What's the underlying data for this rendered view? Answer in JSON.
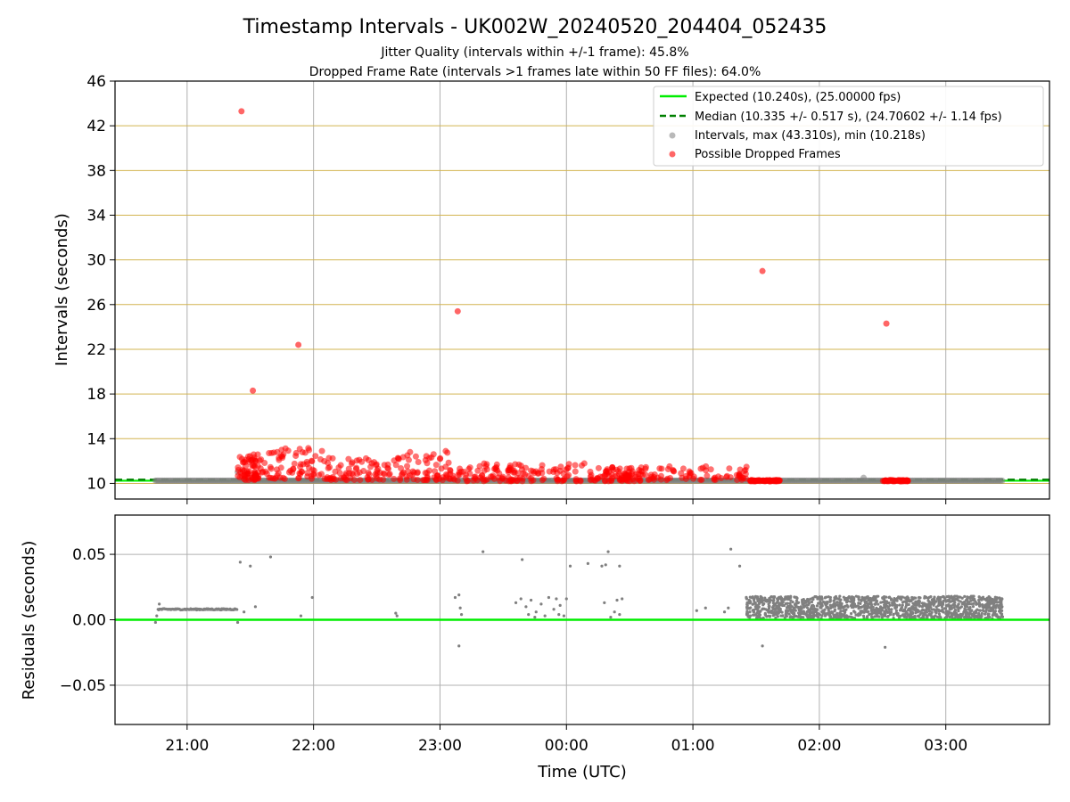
{
  "chart_data": {
    "type": "scatter",
    "title": "Timestamp Intervals - UK002W_20240520_204404_052435",
    "subtitle_lines": [
      "Jitter Quality (intervals within +/-1 frame): 45.8%",
      "Dropped Frame Rate (intervals >1 frames late within 50 FF files): 64.0%"
    ],
    "xlabel": "Time (UTC)",
    "x_ticks": [
      "21:00",
      "22:00",
      "23:00",
      "00:00",
      "01:00",
      "02:00",
      "03:00"
    ],
    "colors": {
      "expected": "#00ee00",
      "median": "#008000",
      "intervals": "#808080",
      "dropped": "#ff0000",
      "hgrid_top": "#d2b450",
      "grid": "#b0b0b0"
    },
    "panels": [
      {
        "ylabel": "Intervals (seconds)",
        "ylim": [
          8.6,
          46
        ],
        "y_ticks": [
          "10",
          "14",
          "18",
          "22",
          "26",
          "30",
          "34",
          "38",
          "42",
          "46"
        ],
        "legend": {
          "placement": "top-right",
          "entries": [
            "Expected (10.240s), (25.00000 fps)",
            "Median (10.335 +/- 0.517 s), (24.70602 +/- 1.14 fps)",
            "Intervals, max (43.310s), min (10.218s)",
            "Possible Dropped Frames"
          ]
        },
        "expected_value": 10.24,
        "median_value": 10.335,
        "interval_band": {
          "x_range": [
            20.75,
            27.45
          ],
          "value": 10.24
        },
        "dropped_outliers": [
          {
            "x": 21.43,
            "y": 43.3
          },
          {
            "x": 21.52,
            "y": 18.3
          },
          {
            "x": 21.88,
            "y": 22.4
          },
          {
            "x": 23.14,
            "y": 25.4
          },
          {
            "x": 25.55,
            "y": 29.0
          },
          {
            "x": 26.53,
            "y": 24.3
          }
        ],
        "dropped_cluster": {
          "segments": [
            {
              "x": [
                21.4,
                21.6
              ],
              "y": [
                10.3,
                12.6
              ]
            },
            {
              "x": [
                21.6,
                22.1
              ],
              "y": [
                10.4,
                13.2
              ]
            },
            {
              "x": [
                22.1,
                22.6
              ],
              "y": [
                10.3,
                12.3
              ]
            },
            {
              "x": [
                22.6,
                23.1
              ],
              "y": [
                10.3,
                12.9
              ]
            },
            {
              "x": [
                23.1,
                23.6
              ],
              "y": [
                10.2,
                11.8
              ]
            },
            {
              "x": [
                23.6,
                24.3
              ],
              "y": [
                10.2,
                11.9
              ]
            },
            {
              "x": [
                24.3,
                24.6
              ],
              "y": [
                10.2,
                11.5
              ]
            },
            {
              "x": [
                24.6,
                25.45
              ],
              "y": [
                10.3,
                11.6
              ]
            },
            {
              "x": [
                25.45,
                25.7
              ],
              "y": [
                10.2,
                10.3
              ]
            },
            {
              "x": [
                26.5,
                26.7
              ],
              "y": [
                10.2,
                10.3
              ]
            }
          ],
          "count": 720
        },
        "gray_outliers": [
          {
            "x": 21.4,
            "y": 11.0
          },
          {
            "x": 26.35,
            "y": 10.5
          }
        ]
      },
      {
        "ylabel": "Residuals (seconds)",
        "ylim": [
          -0.08,
          0.08
        ],
        "y_ticks": [
          "0.05",
          "0.00",
          "−0.05"
        ],
        "zero_line": 0.0,
        "residual_band": {
          "x_range": [
            20.77,
            21.4
          ],
          "y": 0.008
        },
        "residual_scatter_zone": {
          "x_range": [
            25.42,
            27.45
          ],
          "y_range": [
            0.001,
            0.018
          ]
        },
        "residual_points": [
          {
            "x": 20.75,
            "y": -0.002
          },
          {
            "x": 20.76,
            "y": 0.003
          },
          {
            "x": 20.78,
            "y": 0.012
          },
          {
            "x": 21.42,
            "y": 0.044
          },
          {
            "x": 21.5,
            "y": 0.041
          },
          {
            "x": 21.54,
            "y": 0.01
          },
          {
            "x": 21.66,
            "y": 0.048
          },
          {
            "x": 21.4,
            "y": -0.002
          },
          {
            "x": 21.45,
            "y": 0.006
          },
          {
            "x": 21.9,
            "y": 0.003
          },
          {
            "x": 21.99,
            "y": 0.017
          },
          {
            "x": 22.65,
            "y": 0.005
          },
          {
            "x": 22.66,
            "y": 0.003
          },
          {
            "x": 23.12,
            "y": 0.017
          },
          {
            "x": 23.15,
            "y": 0.019
          },
          {
            "x": 23.15,
            "y": -0.02
          },
          {
            "x": 23.16,
            "y": 0.009
          },
          {
            "x": 23.17,
            "y": 0.004
          },
          {
            "x": 23.34,
            "y": 0.052
          },
          {
            "x": 23.6,
            "y": 0.013
          },
          {
            "x": 23.65,
            "y": 0.046
          },
          {
            "x": 23.64,
            "y": 0.016
          },
          {
            "x": 23.68,
            "y": 0.01
          },
          {
            "x": 23.7,
            "y": 0.004
          },
          {
            "x": 23.72,
            "y": 0.015
          },
          {
            "x": 23.75,
            "y": 0.002
          },
          {
            "x": 23.76,
            "y": 0.006
          },
          {
            "x": 23.8,
            "y": 0.012
          },
          {
            "x": 23.83,
            "y": 0.003
          },
          {
            "x": 23.86,
            "y": 0.017
          },
          {
            "x": 23.9,
            "y": 0.008
          },
          {
            "x": 23.92,
            "y": 0.016
          },
          {
            "x": 23.94,
            "y": 0.004
          },
          {
            "x": 23.95,
            "y": 0.011
          },
          {
            "x": 23.98,
            "y": 0.003
          },
          {
            "x": 24.03,
            "y": 0.041
          },
          {
            "x": 24.0,
            "y": 0.016
          },
          {
            "x": 24.17,
            "y": 0.043
          },
          {
            "x": 24.28,
            "y": 0.041
          },
          {
            "x": 24.31,
            "y": 0.042
          },
          {
            "x": 24.33,
            "y": 0.052
          },
          {
            "x": 24.42,
            "y": 0.041
          },
          {
            "x": 24.3,
            "y": 0.013
          },
          {
            "x": 24.35,
            "y": 0.002
          },
          {
            "x": 24.38,
            "y": 0.006
          },
          {
            "x": 24.4,
            "y": 0.015
          },
          {
            "x": 24.42,
            "y": 0.004
          },
          {
            "x": 24.44,
            "y": 0.016
          },
          {
            "x": 25.03,
            "y": 0.007
          },
          {
            "x": 25.1,
            "y": 0.009
          },
          {
            "x": 25.25,
            "y": 0.006
          },
          {
            "x": 25.28,
            "y": 0.009
          },
          {
            "x": 25.3,
            "y": 0.054
          },
          {
            "x": 25.37,
            "y": 0.041
          },
          {
            "x": 25.43,
            "y": 0.013
          },
          {
            "x": 25.55,
            "y": -0.02
          },
          {
            "x": 26.52,
            "y": -0.021
          }
        ]
      }
    ]
  }
}
